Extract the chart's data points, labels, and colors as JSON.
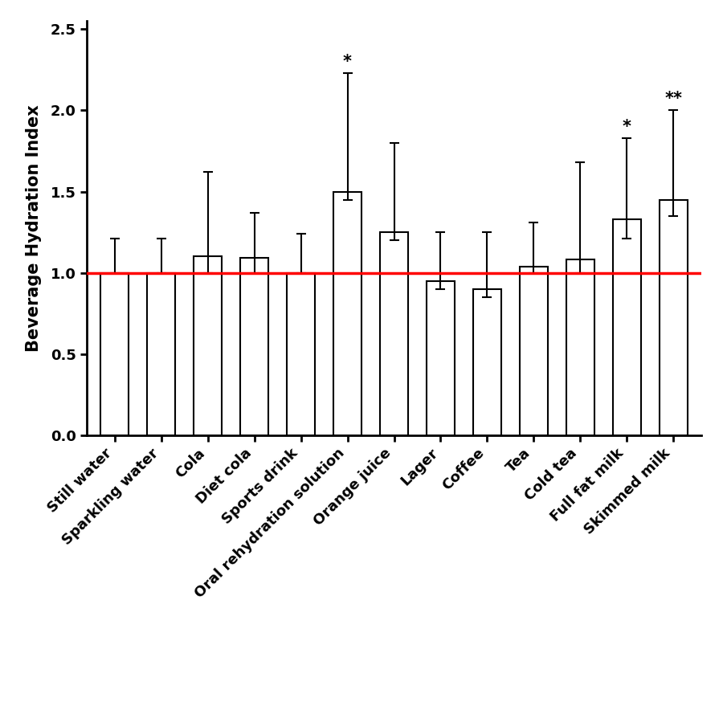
{
  "categories": [
    "Still water",
    "Sparkling water",
    "Cola",
    "Diet cola",
    "Sports drink",
    "Oral rehydration solution",
    "Orange juice",
    "Lager",
    "Coffee",
    "Tea",
    "Cold tea",
    "Full fat milk",
    "Skimmed milk"
  ],
  "values": [
    1.0,
    1.0,
    1.1,
    1.09,
    1.0,
    1.5,
    1.25,
    0.95,
    0.9,
    1.04,
    1.08,
    1.33,
    1.45
  ],
  "error_lower": [
    0.0,
    0.0,
    0.1,
    0.09,
    0.0,
    0.05,
    0.05,
    0.05,
    0.05,
    0.04,
    0.08,
    0.12,
    0.1
  ],
  "error_upper": [
    0.21,
    0.21,
    0.52,
    0.28,
    0.24,
    0.73,
    0.55,
    0.3,
    0.35,
    0.27,
    0.6,
    0.5,
    0.55
  ],
  "significance": [
    "",
    "",
    "",
    "",
    "",
    "*",
    "",
    "",
    "",
    "",
    "",
    "*",
    "**"
  ],
  "bar_color": "#ffffff",
  "bar_edgecolor": "#000000",
  "error_color": "#000000",
  "reference_line": 1.0,
  "reference_line_color": "#ff0000",
  "ylabel": "Beverage Hydration Index",
  "ylim": [
    0.0,
    2.55
  ],
  "yticks": [
    0.0,
    0.5,
    1.0,
    1.5,
    2.0,
    2.5
  ],
  "bar_width": 0.6,
  "capsize": 4,
  "label_fontsize": 14,
  "tick_fontsize": 13,
  "sig_fontsize": 15,
  "ylabel_fontsize": 15
}
